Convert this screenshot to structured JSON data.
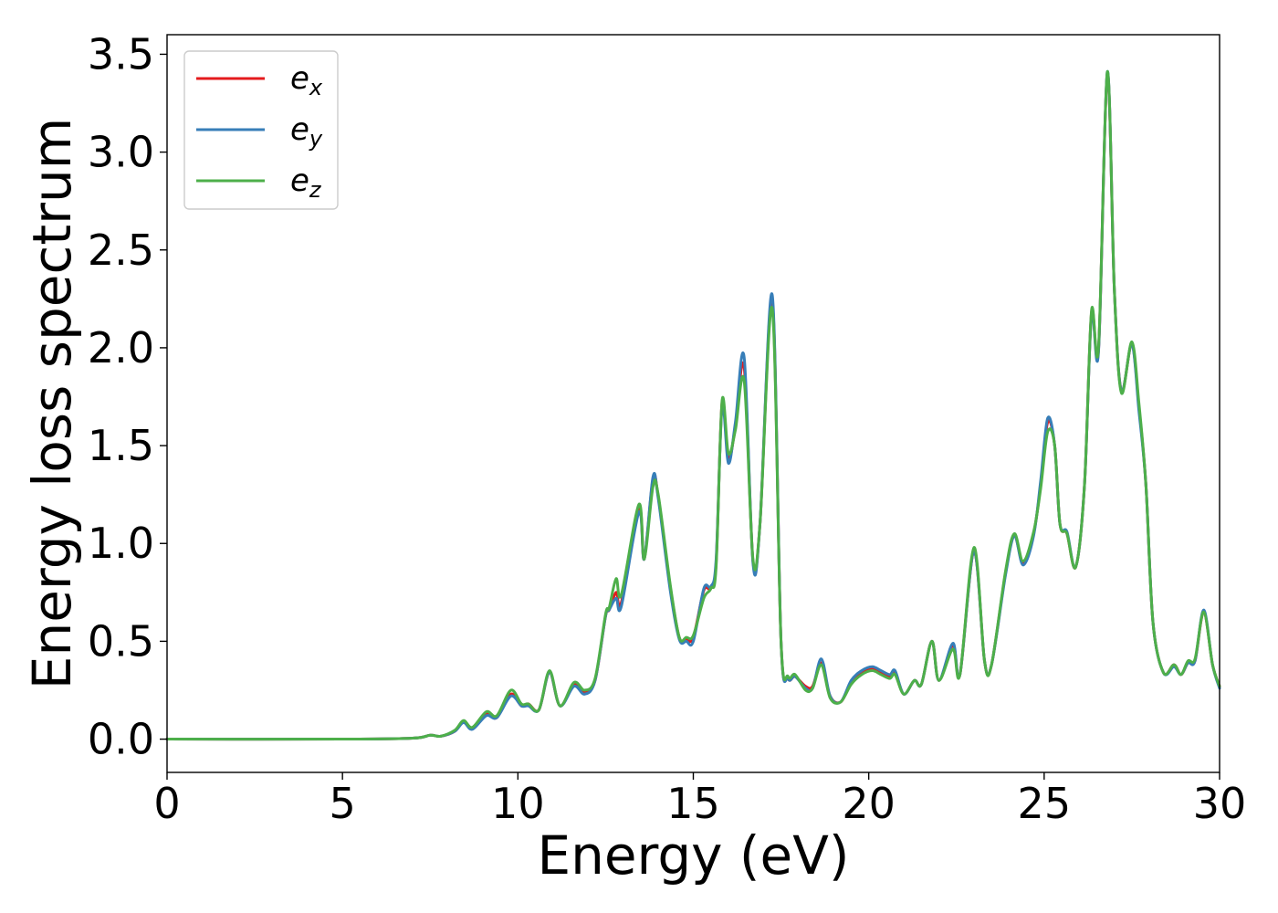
{
  "chart_data": {
    "type": "line",
    "title": "",
    "xlabel": "Energy (eV)",
    "ylabel": "Energy loss spectrum",
    "xlim": [
      0,
      30
    ],
    "ylim": [
      -0.17,
      3.6
    ],
    "xticks": [
      0,
      5,
      10,
      15,
      20,
      25,
      30
    ],
    "xtick_labels": [
      "0",
      "5",
      "10",
      "15",
      "20",
      "25",
      "30"
    ],
    "yticks": [
      0.0,
      0.5,
      1.0,
      1.5,
      2.0,
      2.5,
      3.0,
      3.5
    ],
    "ytick_labels": [
      "0.0",
      "0.5",
      "1.0",
      "1.5",
      "2.0",
      "2.5",
      "3.0",
      "3.5"
    ],
    "grid": false,
    "legend_position": "top-left",
    "series": [
      {
        "name": "e_x",
        "legend_base": "e",
        "legend_sub": "x",
        "color": "#e41a1c",
        "points": [
          [
            0,
            0
          ],
          [
            5,
            0
          ],
          [
            7,
            0.005
          ],
          [
            7.5,
            0.02
          ],
          [
            7.8,
            0.015
          ],
          [
            8.2,
            0.04
          ],
          [
            8.45,
            0.09
          ],
          [
            8.7,
            0.055
          ],
          [
            9.1,
            0.13
          ],
          [
            9.4,
            0.11
          ],
          [
            9.8,
            0.23
          ],
          [
            10.1,
            0.17
          ],
          [
            10.3,
            0.18
          ],
          [
            10.6,
            0.15
          ],
          [
            10.9,
            0.34
          ],
          [
            11.2,
            0.17
          ],
          [
            11.6,
            0.28
          ],
          [
            11.9,
            0.24
          ],
          [
            12.2,
            0.3
          ],
          [
            12.5,
            0.63
          ],
          [
            12.6,
            0.66
          ],
          [
            12.8,
            0.75
          ],
          [
            12.95,
            0.7
          ],
          [
            13.45,
            1.18
          ],
          [
            13.6,
            0.92
          ],
          [
            13.85,
            1.33
          ],
          [
            14,
            1.24
          ],
          [
            14.35,
            0.77
          ],
          [
            14.6,
            0.52
          ],
          [
            14.8,
            0.51
          ],
          [
            15,
            0.52
          ],
          [
            15.3,
            0.76
          ],
          [
            15.5,
            0.77
          ],
          [
            15.65,
            0.9
          ],
          [
            15.82,
            1.72
          ],
          [
            16,
            1.43
          ],
          [
            16.2,
            1.6
          ],
          [
            16.45,
            1.9
          ],
          [
            16.7,
            0.91
          ],
          [
            16.9,
            1.1
          ],
          [
            17.25,
            2.24
          ],
          [
            17.5,
            0.5
          ],
          [
            17.7,
            0.31
          ],
          [
            17.9,
            0.32
          ],
          [
            18.2,
            0.27
          ],
          [
            18.4,
            0.27
          ],
          [
            18.65,
            0.39
          ],
          [
            18.9,
            0.22
          ],
          [
            19.2,
            0.19
          ],
          [
            19.5,
            0.29
          ],
          [
            19.8,
            0.34
          ],
          [
            20.1,
            0.36
          ],
          [
            20.35,
            0.34
          ],
          [
            20.6,
            0.32
          ],
          [
            20.75,
            0.34
          ],
          [
            21,
            0.23
          ],
          [
            21.3,
            0.3
          ],
          [
            21.5,
            0.28
          ],
          [
            21.8,
            0.5
          ],
          [
            22,
            0.3
          ],
          [
            22.4,
            0.48
          ],
          [
            22.6,
            0.33
          ],
          [
            23,
            0.96
          ],
          [
            23.3,
            0.4
          ],
          [
            23.5,
            0.38
          ],
          [
            23.9,
            0.85
          ],
          [
            24.15,
            1.04
          ],
          [
            24.4,
            0.9
          ],
          [
            24.7,
            1.05
          ],
          [
            24.9,
            1.3
          ],
          [
            25.1,
            1.62
          ],
          [
            25.3,
            1.5
          ],
          [
            25.45,
            1.1
          ],
          [
            25.65,
            1.05
          ],
          [
            25.9,
            0.88
          ],
          [
            26.15,
            1.3
          ],
          [
            26.35,
            2.18
          ],
          [
            26.55,
            1.99
          ],
          [
            26.8,
            3.4
          ],
          [
            27,
            2.3
          ],
          [
            27.2,
            1.78
          ],
          [
            27.5,
            2.02
          ],
          [
            27.7,
            1.7
          ],
          [
            27.9,
            1.3
          ],
          [
            28.1,
            0.6
          ],
          [
            28.4,
            0.34
          ],
          [
            28.7,
            0.38
          ],
          [
            28.9,
            0.33
          ],
          [
            29.1,
            0.39
          ],
          [
            29.3,
            0.4
          ],
          [
            29.55,
            0.65
          ],
          [
            29.8,
            0.38
          ],
          [
            30,
            0.27
          ]
        ]
      },
      {
        "name": "e_y",
        "legend_base": "e",
        "legend_sub": "y",
        "color": "#377eb8",
        "points": [
          [
            0,
            0
          ],
          [
            5,
            0
          ],
          [
            7,
            0.005
          ],
          [
            7.5,
            0.02
          ],
          [
            7.8,
            0.015
          ],
          [
            8.2,
            0.04
          ],
          [
            8.45,
            0.085
          ],
          [
            8.7,
            0.05
          ],
          [
            9.1,
            0.12
          ],
          [
            9.4,
            0.11
          ],
          [
            9.8,
            0.22
          ],
          [
            10.1,
            0.17
          ],
          [
            10.3,
            0.17
          ],
          [
            10.6,
            0.15
          ],
          [
            10.9,
            0.34
          ],
          [
            11.2,
            0.17
          ],
          [
            11.6,
            0.27
          ],
          [
            11.9,
            0.23
          ],
          [
            12.2,
            0.3
          ],
          [
            12.5,
            0.63
          ],
          [
            12.6,
            0.66
          ],
          [
            12.8,
            0.72
          ],
          [
            12.95,
            0.68
          ],
          [
            13.45,
            1.16
          ],
          [
            13.6,
            0.92
          ],
          [
            13.85,
            1.34
          ],
          [
            14,
            1.23
          ],
          [
            14.35,
            0.75
          ],
          [
            14.6,
            0.51
          ],
          [
            14.8,
            0.5
          ],
          [
            15,
            0.5
          ],
          [
            15.3,
            0.77
          ],
          [
            15.5,
            0.78
          ],
          [
            15.65,
            0.92
          ],
          [
            15.82,
            1.7
          ],
          [
            16,
            1.41
          ],
          [
            16.2,
            1.62
          ],
          [
            16.45,
            1.95
          ],
          [
            16.7,
            0.9
          ],
          [
            16.9,
            1.1
          ],
          [
            17.25,
            2.27
          ],
          [
            17.5,
            0.5
          ],
          [
            17.7,
            0.31
          ],
          [
            17.9,
            0.32
          ],
          [
            18.2,
            0.26
          ],
          [
            18.4,
            0.26
          ],
          [
            18.65,
            0.41
          ],
          [
            18.9,
            0.22
          ],
          [
            19.2,
            0.19
          ],
          [
            19.5,
            0.3
          ],
          [
            19.8,
            0.35
          ],
          [
            20.1,
            0.37
          ],
          [
            20.35,
            0.35
          ],
          [
            20.6,
            0.33
          ],
          [
            20.75,
            0.35
          ],
          [
            21,
            0.23
          ],
          [
            21.3,
            0.3
          ],
          [
            21.5,
            0.28
          ],
          [
            21.8,
            0.5
          ],
          [
            22,
            0.3
          ],
          [
            22.4,
            0.49
          ],
          [
            22.6,
            0.33
          ],
          [
            23,
            0.96
          ],
          [
            23.3,
            0.4
          ],
          [
            23.5,
            0.38
          ],
          [
            23.9,
            0.84
          ],
          [
            24.15,
            1.04
          ],
          [
            24.4,
            0.89
          ],
          [
            24.7,
            1.04
          ],
          [
            24.9,
            1.32
          ],
          [
            25.1,
            1.64
          ],
          [
            25.3,
            1.5
          ],
          [
            25.45,
            1.1
          ],
          [
            25.65,
            1.06
          ],
          [
            25.9,
            0.88
          ],
          [
            26.15,
            1.3
          ],
          [
            26.35,
            2.17
          ],
          [
            26.55,
            1.98
          ],
          [
            26.8,
            3.41
          ],
          [
            27,
            2.3
          ],
          [
            27.2,
            1.78
          ],
          [
            27.5,
            2.02
          ],
          [
            27.7,
            1.68
          ],
          [
            27.9,
            1.3
          ],
          [
            28.1,
            0.6
          ],
          [
            28.4,
            0.34
          ],
          [
            28.7,
            0.37
          ],
          [
            28.9,
            0.33
          ],
          [
            29.1,
            0.39
          ],
          [
            29.3,
            0.4
          ],
          [
            29.55,
            0.66
          ],
          [
            29.8,
            0.38
          ],
          [
            30,
            0.26
          ]
        ]
      },
      {
        "name": "e_z",
        "legend_base": "e",
        "legend_sub": "z",
        "color": "#4daf4a",
        "points": [
          [
            0,
            0
          ],
          [
            5,
            0
          ],
          [
            7,
            0.005
          ],
          [
            7.5,
            0.02
          ],
          [
            7.8,
            0.015
          ],
          [
            8.2,
            0.045
          ],
          [
            8.45,
            0.095
          ],
          [
            8.7,
            0.06
          ],
          [
            9.1,
            0.14
          ],
          [
            9.4,
            0.12
          ],
          [
            9.8,
            0.25
          ],
          [
            10.1,
            0.18
          ],
          [
            10.3,
            0.18
          ],
          [
            10.6,
            0.15
          ],
          [
            10.9,
            0.35
          ],
          [
            11.2,
            0.17
          ],
          [
            11.6,
            0.29
          ],
          [
            11.9,
            0.25
          ],
          [
            12.2,
            0.31
          ],
          [
            12.5,
            0.64
          ],
          [
            12.6,
            0.67
          ],
          [
            12.8,
            0.82
          ],
          [
            12.95,
            0.74
          ],
          [
            13.45,
            1.2
          ],
          [
            13.6,
            0.92
          ],
          [
            13.85,
            1.29
          ],
          [
            14,
            1.25
          ],
          [
            14.35,
            0.78
          ],
          [
            14.6,
            0.52
          ],
          [
            14.8,
            0.52
          ],
          [
            15,
            0.53
          ],
          [
            15.3,
            0.72
          ],
          [
            15.5,
            0.77
          ],
          [
            15.65,
            0.88
          ],
          [
            15.82,
            1.73
          ],
          [
            16,
            1.46
          ],
          [
            16.2,
            1.58
          ],
          [
            16.45,
            1.83
          ],
          [
            16.7,
            0.92
          ],
          [
            16.9,
            1.1
          ],
          [
            17.25,
            2.2
          ],
          [
            17.5,
            0.5
          ],
          [
            17.7,
            0.32
          ],
          [
            17.9,
            0.33
          ],
          [
            18.2,
            0.25
          ],
          [
            18.4,
            0.26
          ],
          [
            18.65,
            0.38
          ],
          [
            18.9,
            0.21
          ],
          [
            19.2,
            0.19
          ],
          [
            19.5,
            0.28
          ],
          [
            19.8,
            0.33
          ],
          [
            20.1,
            0.35
          ],
          [
            20.35,
            0.33
          ],
          [
            20.6,
            0.31
          ],
          [
            20.75,
            0.33
          ],
          [
            21,
            0.23
          ],
          [
            21.3,
            0.3
          ],
          [
            21.5,
            0.28
          ],
          [
            21.8,
            0.5
          ],
          [
            22,
            0.3
          ],
          [
            22.4,
            0.46
          ],
          [
            22.6,
            0.33
          ],
          [
            23,
            0.98
          ],
          [
            23.3,
            0.4
          ],
          [
            23.5,
            0.38
          ],
          [
            23.9,
            0.86
          ],
          [
            24.15,
            1.05
          ],
          [
            24.4,
            0.91
          ],
          [
            24.7,
            1.06
          ],
          [
            24.9,
            1.28
          ],
          [
            25.1,
            1.57
          ],
          [
            25.3,
            1.5
          ],
          [
            25.45,
            1.1
          ],
          [
            25.65,
            1.05
          ],
          [
            25.9,
            0.88
          ],
          [
            26.15,
            1.3
          ],
          [
            26.35,
            2.19
          ],
          [
            26.55,
            2.0
          ],
          [
            26.8,
            3.41
          ],
          [
            27,
            2.3
          ],
          [
            27.2,
            1.77
          ],
          [
            27.5,
            2.03
          ],
          [
            27.7,
            1.72
          ],
          [
            27.9,
            1.3
          ],
          [
            28.1,
            0.6
          ],
          [
            28.4,
            0.34
          ],
          [
            28.7,
            0.38
          ],
          [
            28.9,
            0.33
          ],
          [
            29.1,
            0.4
          ],
          [
            29.3,
            0.41
          ],
          [
            29.55,
            0.65
          ],
          [
            29.8,
            0.38
          ],
          [
            30,
            0.27
          ]
        ]
      }
    ]
  }
}
